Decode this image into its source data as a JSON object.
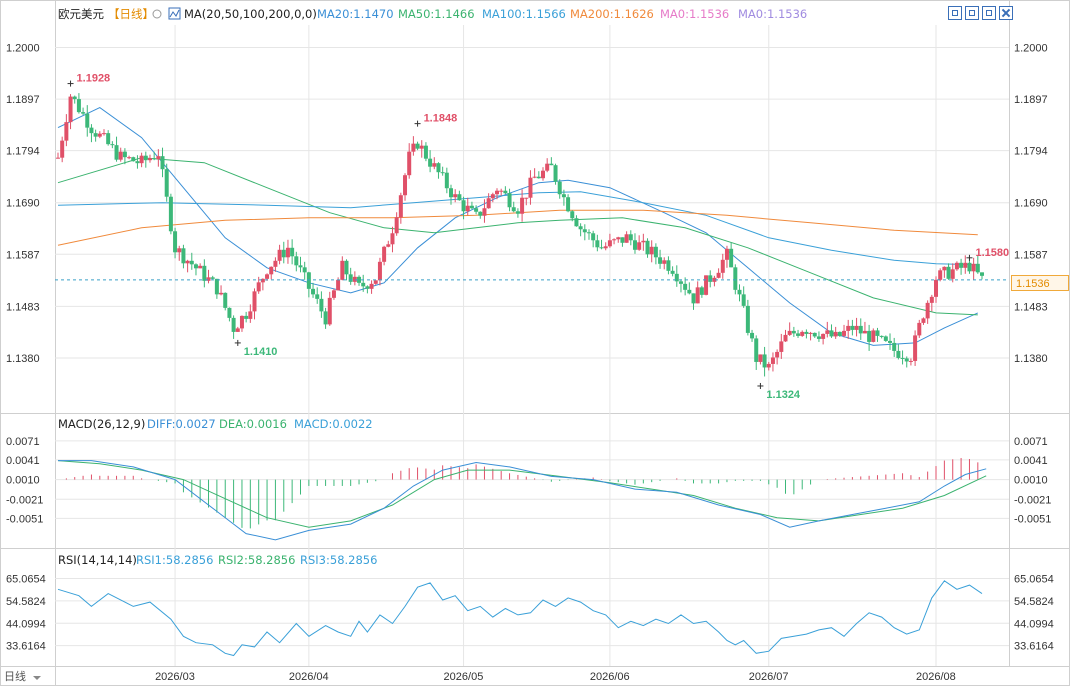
{
  "header": {
    "symbol": "欧元美元",
    "period": "【日线】",
    "period_icon": "gear-icon",
    "ma_icon": "ma-toggle-icon",
    "ma_label": "MA(20,50,100,200,0,0)",
    "ma_values": [
      {
        "text": "MA20:1.1470",
        "color": "#3a8fd6"
      },
      {
        "text": "MA50:1.1466",
        "color": "#3bb36f"
      },
      {
        "text": "MA100:1.1566",
        "color": "#3aa0d8"
      },
      {
        "text": "MA200:1.1626",
        "color": "#f08a3c"
      },
      {
        "text": "MA0:1.1536",
        "color": "#e67ac8"
      },
      {
        "text": "MA0:1.1536",
        "color": "#a08be0"
      }
    ]
  },
  "colors": {
    "up": "#e05068",
    "down": "#3cb879",
    "grid": "#e6e6e6",
    "current": "#3aa0c8"
  },
  "current_price_label": "1.1536",
  "bottom_left_label": "日线",
  "chart_data": [
    {
      "type": "candlestick",
      "ylim": [
        1.129,
        1.2045
      ],
      "y_ticks": [
        "1.2000",
        "1.1897",
        "1.1794",
        "1.1690",
        "1.1587",
        "1.1483",
        "1.1380"
      ],
      "current_price": 1.1536,
      "annotations": [
        {
          "text": "1.1928",
          "index": 3,
          "value": 1.1928,
          "kind": "high"
        },
        {
          "text": "1.1410",
          "index": 43,
          "value": 1.141,
          "kind": "low"
        },
        {
          "text": "1.1848",
          "index": 86,
          "value": 1.1848,
          "kind": "high"
        },
        {
          "text": "1.1324",
          "index": 168,
          "value": 1.1324,
          "kind": "low"
        },
        {
          "text": "1.1580",
          "index": 218,
          "value": 1.158,
          "kind": "high"
        }
      ],
      "ma_lines": [
        {
          "name": "MA20",
          "color": "#3a8fd6",
          "points": [
            [
              0,
              1.184
            ],
            [
              10,
              1.188
            ],
            [
              20,
              1.182
            ],
            [
              30,
              1.172
            ],
            [
              40,
              1.162
            ],
            [
              50,
              1.156
            ],
            [
              60,
              1.153
            ],
            [
              70,
              1.151
            ],
            [
              78,
              1.153
            ],
            [
              86,
              1.16
            ],
            [
              95,
              1.166
            ],
            [
              105,
              1.17
            ],
            [
              115,
              1.173
            ],
            [
              122,
              1.1735
            ],
            [
              132,
              1.172
            ],
            [
              145,
              1.167
            ],
            [
              155,
              1.163
            ],
            [
              165,
              1.156
            ],
            [
              175,
              1.149
            ],
            [
              185,
              1.143
            ],
            [
              195,
              1.1405
            ],
            [
              205,
              1.141
            ],
            [
              212,
              1.144
            ],
            [
              220,
              1.147
            ]
          ]
        },
        {
          "name": "MA50",
          "color": "#3bb36f",
          "points": [
            [
              0,
              1.173
            ],
            [
              20,
              1.178
            ],
            [
              35,
              1.177
            ],
            [
              50,
              1.172
            ],
            [
              65,
              1.167
            ],
            [
              78,
              1.164
            ],
            [
              90,
              1.163
            ],
            [
              100,
              1.164
            ],
            [
              110,
              1.165
            ],
            [
              120,
              1.1655
            ],
            [
              135,
              1.166
            ],
            [
              150,
              1.164
            ],
            [
              165,
              1.16
            ],
            [
              180,
              1.155
            ],
            [
              195,
              1.15
            ],
            [
              210,
              1.147
            ],
            [
              220,
              1.1466
            ]
          ]
        },
        {
          "name": "MA100",
          "color": "#3aa0d8",
          "points": [
            [
              0,
              1.1685
            ],
            [
              25,
              1.169
            ],
            [
              50,
              1.1685
            ],
            [
              70,
              1.168
            ],
            [
              85,
              1.169
            ],
            [
              100,
              1.17
            ],
            [
              115,
              1.171
            ],
            [
              125,
              1.1712
            ],
            [
              140,
              1.169
            ],
            [
              155,
              1.1665
            ],
            [
              170,
              1.162
            ],
            [
              185,
              1.1595
            ],
            [
              200,
              1.1575
            ],
            [
              210,
              1.1568
            ],
            [
              220,
              1.1566
            ]
          ]
        },
        {
          "name": "MA200",
          "color": "#f08a3c",
          "points": [
            [
              0,
              1.1605
            ],
            [
              20,
              1.164
            ],
            [
              40,
              1.1655
            ],
            [
              60,
              1.166
            ],
            [
              80,
              1.166
            ],
            [
              100,
              1.1665
            ],
            [
              120,
              1.1675
            ],
            [
              140,
              1.1675
            ],
            [
              160,
              1.1665
            ],
            [
              180,
              1.165
            ],
            [
              200,
              1.1635
            ],
            [
              220,
              1.1626
            ]
          ]
        }
      ],
      "candles": []
    },
    {
      "type": "macd",
      "title": "MACD(26,12,9)",
      "legend": [
        {
          "text": "DIFF:0.0027",
          "color": "#3a8fd6"
        },
        {
          "text": "DEA:0.0016",
          "color": "#3bb36f"
        },
        {
          "text": "MACD:0.0022",
          "color": "#3aa0d8"
        }
      ],
      "ylim": [
        -0.0093,
        0.0085
      ],
      "y_ticks": [
        "0.0071",
        "0.0041",
        "0.0010",
        "-0.0021",
        "-0.0051"
      ],
      "diff_points": [
        [
          0,
          0.004
        ],
        [
          8,
          0.004
        ],
        [
          18,
          0.003
        ],
        [
          28,
          0.001
        ],
        [
          38,
          -0.004
        ],
        [
          45,
          -0.0075
        ],
        [
          52,
          -0.0085
        ],
        [
          60,
          -0.007
        ],
        [
          70,
          -0.006
        ],
        [
          78,
          -0.0035
        ],
        [
          85,
          0.0
        ],
        [
          92,
          0.0025
        ],
        [
          100,
          0.0037
        ],
        [
          108,
          0.003
        ],
        [
          118,
          0.0015
        ],
        [
          128,
          0.001
        ],
        [
          138,
          -0.0005
        ],
        [
          148,
          -0.001
        ],
        [
          158,
          -0.003
        ],
        [
          168,
          -0.0045
        ],
        [
          175,
          -0.0065
        ],
        [
          182,
          -0.0055
        ],
        [
          190,
          -0.0045
        ],
        [
          198,
          -0.0035
        ],
        [
          206,
          -0.0025
        ],
        [
          212,
          0.0
        ],
        [
          217,
          0.0018
        ],
        [
          222,
          0.0027
        ]
      ],
      "dea_points": [
        [
          0,
          0.004
        ],
        [
          10,
          0.0035
        ],
        [
          20,
          0.0025
        ],
        [
          30,
          0.001
        ],
        [
          40,
          -0.002
        ],
        [
          50,
          -0.005
        ],
        [
          60,
          -0.0065
        ],
        [
          70,
          -0.0055
        ],
        [
          80,
          -0.003
        ],
        [
          90,
          0.001
        ],
        [
          98,
          0.0025
        ],
        [
          108,
          0.0025
        ],
        [
          120,
          0.0015
        ],
        [
          132,
          0.0005
        ],
        [
          142,
          -0.0005
        ],
        [
          152,
          -0.0015
        ],
        [
          162,
          -0.0035
        ],
        [
          172,
          -0.005
        ],
        [
          182,
          -0.0055
        ],
        [
          192,
          -0.0045
        ],
        [
          202,
          -0.0035
        ],
        [
          212,
          -0.0015
        ],
        [
          222,
          0.0016
        ]
      ]
    },
    {
      "type": "rsi",
      "title": "RSI(14,14,14)",
      "legend": [
        {
          "text": "RSI1:58.2856",
          "color": "#3aa0d8"
        },
        {
          "text": "RSI2:58.2856",
          "color": "#3bb36f"
        },
        {
          "text": "RSI3:58.2856",
          "color": "#3aa0d8"
        }
      ],
      "ylim": [
        25.0,
        70.0
      ],
      "y_ticks": [
        "65.0654",
        "54.5824",
        "44.0994",
        "33.6164"
      ],
      "rsi_points": [
        [
          0,
          60
        ],
        [
          5,
          57
        ],
        [
          8,
          52
        ],
        [
          12,
          58
        ],
        [
          18,
          52
        ],
        [
          22,
          54
        ],
        [
          27,
          46
        ],
        [
          30,
          38
        ],
        [
          33,
          35
        ],
        [
          37,
          34
        ],
        [
          40,
          30
        ],
        [
          42,
          29
        ],
        [
          44,
          34
        ],
        [
          47,
          33
        ],
        [
          50,
          40
        ],
        [
          53,
          35
        ],
        [
          57,
          44
        ],
        [
          60,
          38
        ],
        [
          64,
          43
        ],
        [
          67,
          40
        ],
        [
          70,
          38
        ],
        [
          72,
          45
        ],
        [
          74,
          40
        ],
        [
          77,
          48
        ],
        [
          80,
          44
        ],
        [
          83,
          52
        ],
        [
          86,
          61
        ],
        [
          89,
          63
        ],
        [
          92,
          55
        ],
        [
          95,
          57
        ],
        [
          98,
          50
        ],
        [
          101,
          52
        ],
        [
          104,
          47
        ],
        [
          107,
          51
        ],
        [
          110,
          48
        ],
        [
          113,
          49
        ],
        [
          116,
          55
        ],
        [
          119,
          52
        ],
        [
          122,
          56
        ],
        [
          125,
          54
        ],
        [
          128,
          50
        ],
        [
          131,
          48
        ],
        [
          134,
          42
        ],
        [
          137,
          45
        ],
        [
          140,
          43
        ],
        [
          143,
          46
        ],
        [
          146,
          44
        ],
        [
          149,
          48
        ],
        [
          152,
          44
        ],
        [
          155,
          45
        ],
        [
          158,
          40
        ],
        [
          160,
          36
        ],
        [
          162,
          34
        ],
        [
          164,
          36
        ],
        [
          167,
          30
        ],
        [
          170,
          31
        ],
        [
          173,
          37
        ],
        [
          176,
          38
        ],
        [
          179,
          39
        ],
        [
          182,
          41
        ],
        [
          185,
          42
        ],
        [
          188,
          38
        ],
        [
          191,
          44
        ],
        [
          194,
          49
        ],
        [
          197,
          47
        ],
        [
          200,
          42
        ],
        [
          203,
          39
        ],
        [
          206,
          41
        ],
        [
          209,
          56
        ],
        [
          212,
          64
        ],
        [
          215,
          60
        ],
        [
          218,
          62
        ],
        [
          221,
          58
        ]
      ]
    }
  ],
  "x_axis": {
    "labels": [
      {
        "text": "2026/03",
        "index": 28
      },
      {
        "text": "2026/04",
        "index": 60
      },
      {
        "text": "2026/05",
        "index": 97
      },
      {
        "text": "2026/06",
        "index": 132
      },
      {
        "text": "2026/07",
        "index": 170
      },
      {
        "text": "2026/08",
        "index": 210
      }
    ]
  }
}
